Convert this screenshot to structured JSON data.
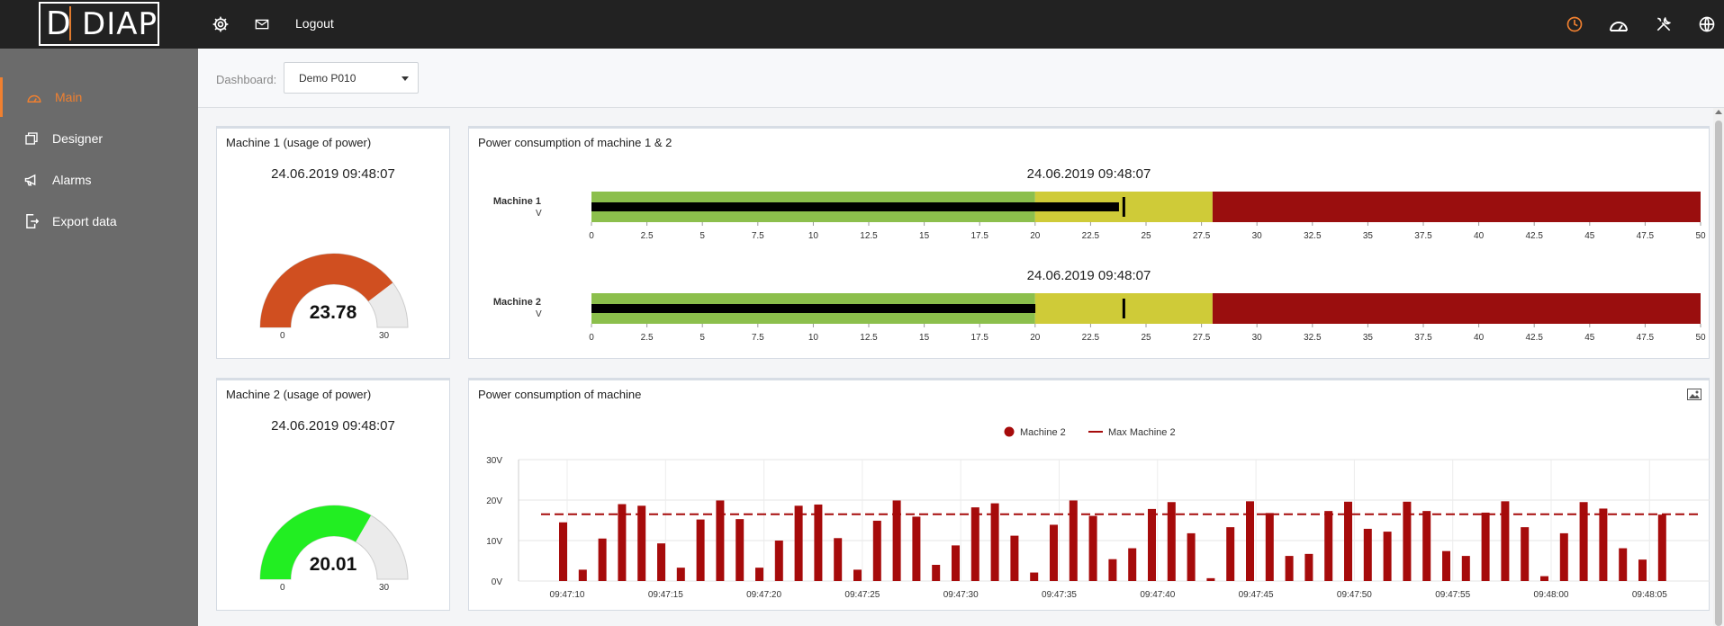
{
  "app": {
    "logo_text": "DIAP"
  },
  "topbar": {
    "logout_label": "Logout",
    "icons": [
      "gear-icon",
      "mail-icon",
      "clock-icon",
      "speedometer-icon",
      "tools-icon",
      "globe-icon"
    ]
  },
  "sidebar": {
    "items": [
      {
        "label": "Main",
        "icon": "dashboard-icon",
        "active": true
      },
      {
        "label": "Designer",
        "icon": "windows-icon",
        "active": false
      },
      {
        "label": "Alarms",
        "icon": "megaphone-icon",
        "active": false
      },
      {
        "label": "Export data",
        "icon": "export-icon",
        "active": false
      }
    ]
  },
  "dashboard": {
    "label": "Dashboard:",
    "selected": "Demo P010"
  },
  "colors": {
    "accent": "#f08030",
    "gauge1": "#d04f20",
    "gauge2": "#22ee22",
    "green": "#8cbf4c",
    "yellow": "#cfcb38",
    "red": "#9a0e0e",
    "bar": "#a60b0b"
  },
  "gauge1": {
    "title": "Machine 1 (usage of power)",
    "date": "24.06.2019 09:48:07",
    "value": "23.78",
    "min": "0",
    "max": "30",
    "fraction": 0.793
  },
  "gauge2": {
    "title": "Machine 2 (usage of power)",
    "date": "24.06.2019 09:48:07",
    "value": "20.01",
    "min": "0",
    "max": "30",
    "fraction": 0.667
  },
  "bullet": {
    "title": "Power consumption of machine 1 & 2",
    "ticks": [
      "0",
      "2.5",
      "5",
      "7.5",
      "10",
      "12.5",
      "15",
      "17.5",
      "20",
      "22.5",
      "25",
      "27.5",
      "30",
      "32.5",
      "35",
      "37.5",
      "40",
      "42.5",
      "45",
      "47.5",
      "50"
    ],
    "rows": [
      {
        "label": "Machine 1",
        "unit": "V",
        "date": "24.06.2019 09:48:07",
        "value": 23.78,
        "target": 24
      },
      {
        "label": "Machine 2",
        "unit": "V",
        "date": "24.06.2019 09:48:07",
        "value": 20.01,
        "target": 24
      }
    ]
  },
  "linechart": {
    "title": "Power consumption of machine",
    "image_icon": "image-icon",
    "legend": [
      "Machine 2",
      "Max Machine 2"
    ]
  },
  "chart_data": [
    {
      "type": "bar",
      "title": "Power consumption of machine",
      "series": [
        {
          "name": "Machine 2",
          "values": [
            14.5,
            2.8,
            10.5,
            19.0,
            18.6,
            9.3,
            3.3,
            15.2,
            19.9,
            15.3,
            3.3,
            10.0,
            18.6,
            18.9,
            10.6,
            2.8,
            14.9,
            19.9,
            15.9,
            4.0,
            8.8,
            18.2,
            19.2,
            11.2,
            2.1,
            13.9,
            19.9,
            16.1,
            5.4,
            8.1,
            17.8,
            19.5,
            11.8,
            0.7,
            13.3,
            19.7,
            16.8,
            6.2,
            6.7,
            17.3,
            19.6,
            12.9,
            12.2,
            19.6,
            17.3,
            7.4,
            6.2,
            16.9,
            19.7,
            13.3,
            1.2,
            11.8,
            19.5,
            17.9,
            8.1,
            5.3,
            16.4
          ]
        },
        {
          "name": "Max Machine 2",
          "values": [
            16.5
          ]
        }
      ],
      "y_ticks": [
        "0V",
        "10V",
        "20V",
        "30V"
      ],
      "ylim": [
        0,
        30
      ],
      "x_ticks": [
        "09:47:10",
        "09:47:15",
        "09:47:20",
        "09:47:25",
        "09:47:30",
        "09:47:35",
        "09:47:40",
        "09:47:45",
        "09:47:50",
        "09:47:55",
        "09:48:00",
        "09:48:05"
      ],
      "legend": "top-center",
      "grid": true
    }
  ]
}
